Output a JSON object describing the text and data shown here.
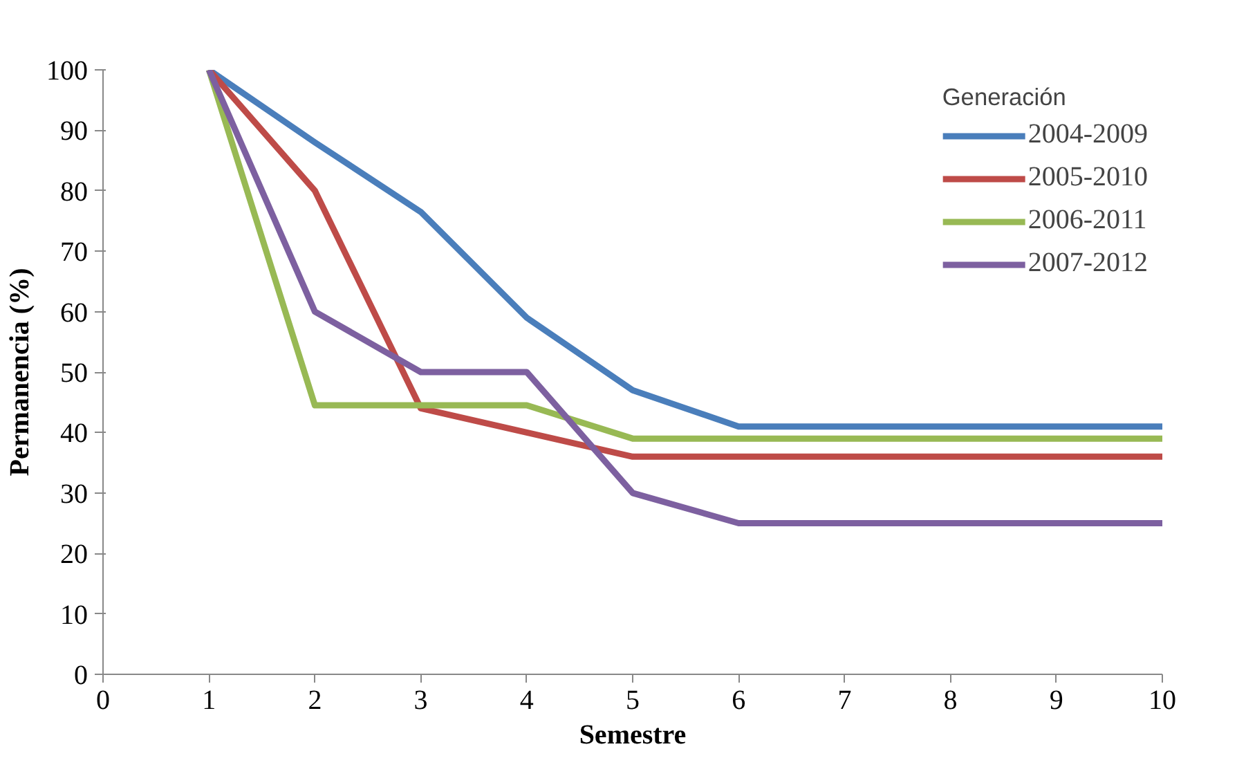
{
  "chart_data": {
    "type": "line",
    "xlabel": "Semestre",
    "ylabel": "Permanencia (%)",
    "legend_title": "Generación",
    "x": [
      1,
      2,
      3,
      4,
      5,
      6,
      7,
      8,
      9,
      10
    ],
    "xlim": [
      0,
      10
    ],
    "xticks": [
      0,
      1,
      2,
      3,
      4,
      5,
      6,
      7,
      8,
      9,
      10
    ],
    "ylim": [
      0,
      100
    ],
    "yticks": [
      0,
      10,
      20,
      30,
      40,
      50,
      60,
      70,
      80,
      90,
      100
    ],
    "grid": false,
    "legend": "top right",
    "marker": "none",
    "line_style": "solid",
    "series": [
      {
        "name": "2004-2009",
        "color": "#4a7ebb",
        "values": [
          100,
          88,
          76.5,
          59,
          47,
          41,
          41,
          41,
          41,
          41
        ]
      },
      {
        "name": "2005-2010",
        "color": "#be4b48",
        "values": [
          100,
          80,
          44,
          40,
          36,
          36,
          36,
          36,
          36,
          36
        ]
      },
      {
        "name": "2006-2011",
        "color": "#98b954",
        "values": [
          100,
          44.5,
          44.5,
          44.5,
          39,
          39,
          39,
          39,
          39,
          39
        ]
      },
      {
        "name": "2007-2012",
        "color": "#7d60a0",
        "values": [
          100,
          60,
          50,
          50,
          30,
          25,
          25,
          25,
          25,
          25
        ]
      }
    ]
  }
}
